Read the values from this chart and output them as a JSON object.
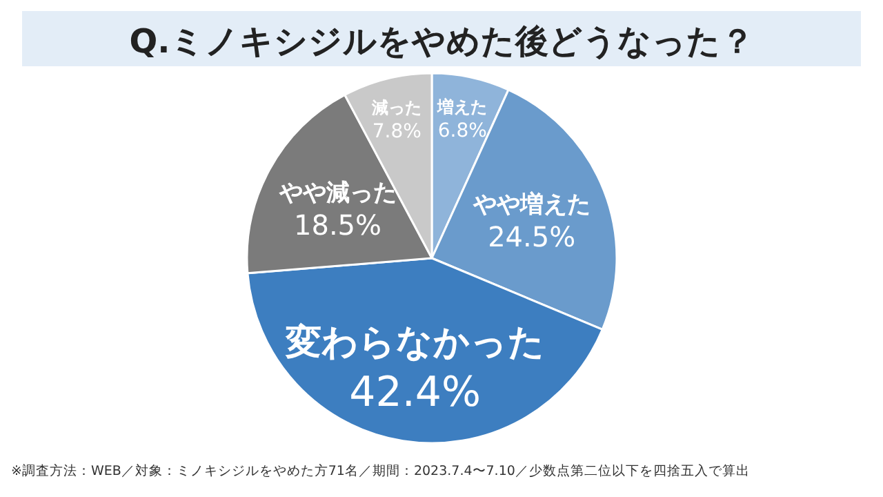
{
  "chart_data": {
    "type": "pie",
    "title": "Q.ミノキシジルをやめた後どうなった？",
    "categories": [
      "増えた",
      "やや増えた",
      "変わらなかった",
      "やや減った",
      "減った"
    ],
    "values": [
      6.8,
      24.5,
      42.4,
      18.5,
      7.8
    ],
    "colors": [
      "#8fb4da",
      "#6a9bcc",
      "#3d7ec0",
      "#7b7b7b",
      "#c9c9c9"
    ],
    "value_labels": [
      "6.8%",
      "24.5%",
      "42.4%",
      "18.5%",
      "7.8%"
    ],
    "annotations": [
      "※調査方法：WEB／対象：ミノキシジルをやめた方71名／期間：2023.7.4〜7.10／少数点第二位以下を四捨五入で算出"
    ]
  }
}
